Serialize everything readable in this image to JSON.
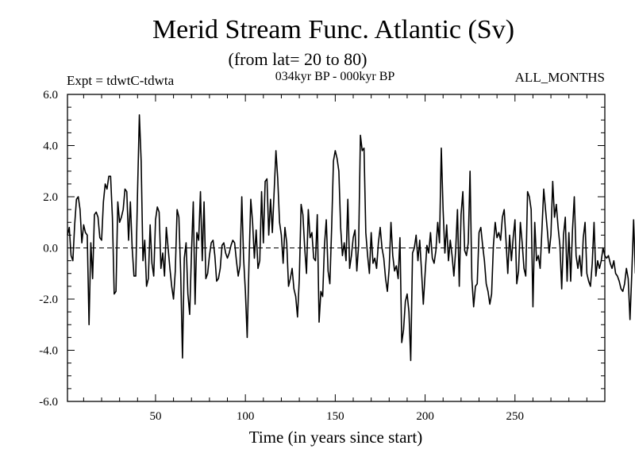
{
  "chart_data": {
    "type": "line",
    "title": "Merid Stream Func. Atlantic (Sv)",
    "subtitle": "(from lat= 20 to 80)",
    "experiment_label": "Expt = tdwtC-tdwta",
    "period_label": "034kyr BP - 000kyr BP",
    "months_label": "ALL_MONTHS",
    "xlabel": "Time (in years since start)",
    "ylabel": "",
    "xlim": [
      1,
      300
    ],
    "ylim": [
      -6,
      6
    ],
    "x_ticks": [
      50,
      100,
      150,
      200,
      250
    ],
    "x_tick_labels": [
      "50",
      "100",
      "150",
      "200",
      "250"
    ],
    "y_ticks": [
      -6,
      -4,
      -2,
      0,
      2,
      4,
      6
    ],
    "y_tick_labels": [
      "-6.0",
      "-4.0",
      "-2.0",
      "0.0",
      "2.0",
      "4.0",
      "6.0"
    ],
    "zero_line": true,
    "grid": false,
    "series": [
      {
        "name": "Merid Stream Func. Atlantic",
        "x_start": 1,
        "x_step": 1,
        "values": [
          0.5,
          0.8,
          -0.3,
          -0.5,
          0.9,
          1.9,
          2.0,
          1.5,
          0.2,
          0.9,
          0.6,
          0.5,
          -3.0,
          0.2,
          -1.2,
          1.3,
          1.4,
          1.2,
          0.4,
          0.3,
          1.8,
          2.5,
          2.3,
          2.8,
          2.8,
          1.2,
          -1.8,
          -1.7,
          1.8,
          1.0,
          1.2,
          1.5,
          2.3,
          2.2,
          0.3,
          1.8,
          0.0,
          -1.1,
          -1.1,
          2.2,
          5.2,
          3.4,
          -0.5,
          0.3,
          -1.5,
          -1.2,
          0.9,
          -0.6,
          -1.1,
          1.1,
          1.6,
          1.4,
          -0.8,
          -0.2,
          -1.1,
          0.8,
          0.0,
          -0.8,
          -1.5,
          -2.0,
          -0.9,
          1.5,
          1.2,
          -1.0,
          -4.3,
          -0.4,
          0.2,
          -1.8,
          -2.6,
          -0.2,
          1.8,
          -2.2,
          0.6,
          0.3,
          2.2,
          -0.5,
          1.8,
          -1.2,
          -1.0,
          -0.3,
          0.2,
          0.3,
          -0.3,
          -1.3,
          -1.2,
          -0.8,
          0.1,
          0.2,
          -0.2,
          -0.4,
          -0.2,
          0.1,
          0.3,
          0.2,
          -0.5,
          -1.1,
          -0.7,
          2.0,
          -0.4,
          -1.7,
          -3.5,
          -0.6,
          1.9,
          1.0,
          -0.4,
          0.7,
          -0.8,
          -0.5,
          2.2,
          0.2,
          2.6,
          2.7,
          0.5,
          1.9,
          0.6,
          2.2,
          3.8,
          2.7,
          1.0,
          0.5,
          -0.6,
          0.8,
          0.2,
          -1.5,
          -1.2,
          -0.8,
          -1.6,
          -1.9,
          -2.7,
          -1.2,
          1.7,
          1.3,
          0.0,
          -1.0,
          1.5,
          0.4,
          0.6,
          -0.4,
          -0.5,
          1.3,
          -2.9,
          -1.7,
          -1.9,
          0.1,
          1.1,
          -0.9,
          -1.4,
          0.8,
          3.4,
          3.8,
          3.5,
          3.0,
          0.8,
          -0.3,
          0.2,
          -0.5,
          1.9,
          -0.8,
          -0.3,
          0.4,
          0.7,
          -0.9,
          0.1,
          4.4,
          3.8,
          3.9,
          0.6,
          -0.3,
          -1.0,
          0.6,
          -0.6,
          -0.4,
          -0.8,
          0.2,
          0.8,
          0.0,
          -0.4,
          -1.2,
          -1.7,
          -0.8,
          1.0,
          -0.3,
          -0.9,
          -0.7,
          -1.2,
          0.4,
          -3.7,
          -3.2,
          -2.1,
          -1.8,
          -2.5,
          -4.4,
          -0.2,
          0.0,
          0.5,
          -0.5,
          0.3,
          -0.9,
          -2.2,
          -1.0,
          0.1,
          -0.2,
          0.6,
          -0.4,
          -0.6,
          -0.1,
          1.0,
          0.2,
          3.9,
          1.5,
          -0.2,
          0.9,
          -0.5,
          0.3,
          -0.3,
          -1.1,
          -0.1,
          1.5,
          -1.5,
          1.3,
          2.2,
          -0.1,
          -0.3,
          0.2,
          3.0,
          -1.2,
          -2.3,
          -1.5,
          -1.4,
          0.6,
          0.8,
          0.1,
          -0.5,
          -1.4,
          -1.7,
          -2.2,
          -1.8,
          0.1,
          1.0,
          0.4,
          0.6,
          0.3,
          1.2,
          1.5,
          0.3,
          -1.0,
          0.5,
          -0.5,
          0.4,
          1.1,
          -1.4,
          -0.9,
          1.0,
          0.2,
          -0.8,
          -1.1,
          2.2,
          2.0,
          1.5,
          -2.3,
          1.0,
          -0.5,
          -0.3,
          -0.8,
          0.7,
          2.3,
          1.5,
          0.7,
          -0.2,
          0.5,
          2.6,
          1.2,
          1.7,
          0.8,
          0.1,
          -1.6,
          0.5,
          1.2,
          -1.3,
          0.6,
          -1.3,
          0.7,
          2.0,
          -0.3,
          -0.8,
          -0.3,
          -1.1,
          0.4,
          1.0,
          -1.0,
          -1.3,
          -1.5,
          -0.6,
          1.0,
          -1.1,
          -0.5,
          -0.8,
          -0.5,
          0.0,
          -0.3,
          -0.4,
          -0.3,
          -0.6,
          -0.8,
          -0.5,
          -1.0,
          -1.1,
          -1.3,
          -1.6,
          -1.7,
          -1.4,
          -0.8,
          -1.2,
          -2.8,
          -1.0,
          1.1,
          -1.0
        ]
      }
    ]
  }
}
